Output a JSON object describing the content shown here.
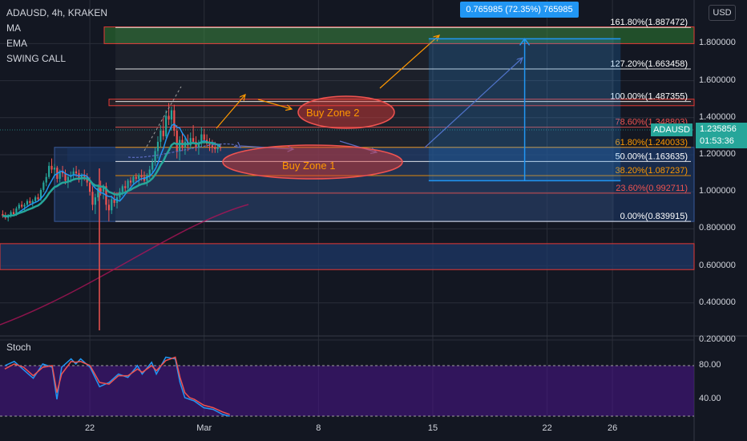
{
  "header": {
    "title": "ADAUSD, 4h, KRAKEN",
    "indicators": [
      "MA",
      "EMA",
      "SWING CALL"
    ]
  },
  "currency_button": "USD",
  "stoch_label": "Stoch",
  "price_tag": {
    "symbol": "ADAUSD",
    "price": "1.235856",
    "countdown": "01:53:36"
  },
  "measure_label": "0.765985 (72.35%) 765985",
  "annotations": {
    "zone1": "Buy Zone 1",
    "zone2": "Buy Zone 2"
  },
  "colors": {
    "background": "#131722",
    "up_candle": "#26a69a",
    "down_candle": "#ef5350",
    "ma_line": "#2196f3",
    "ema_line": "#26a69a",
    "stoch_fill": "#4a148c",
    "measure_blue": "#2196f3",
    "zone_red": "#e53935"
  },
  "chart_data": [
    {
      "type": "candlestick",
      "title": "ADAUSD, 4h, KRAKEN",
      "y_axis": {
        "ticks": [
          "1.800000",
          "1.600000",
          "1.400000",
          "1.200000",
          "1.000000",
          "0.800000",
          "0.600000",
          "0.400000",
          "0.200000"
        ],
        "tick_values": [
          1.8,
          1.6,
          1.4,
          1.2,
          1.0,
          0.8,
          0.6,
          0.4,
          0.2
        ],
        "range": [
          0.14,
          1.86
        ]
      },
      "x_axis": {
        "ticks": [
          "22",
          "Mar",
          "8",
          "15",
          "22",
          "26"
        ],
        "tick_dates": [
          "2021-02-22",
          "2021-03-01",
          "2021-03-08",
          "2021-03-15",
          "2021-03-22",
          "2021-03-26"
        ],
        "range": [
          "2021-02-16T12:00",
          "2021-03-31"
        ]
      },
      "fibonacci": [
        {
          "label": "161.80%(1.887472)",
          "value": 1.887472
        },
        {
          "label": "127.20%(1.663458)",
          "value": 1.663458
        },
        {
          "label": "100.00%(1.487355)",
          "value": 1.487355
        },
        {
          "label": "78.60%(1.348803)",
          "value": 1.348803
        },
        {
          "label": "61.80%(1.240033)",
          "value": 1.240033
        },
        {
          "label": "50.00%(1.163635)",
          "value": 1.163635
        },
        {
          "label": "38.20%(1.087237)",
          "value": 1.087237
        },
        {
          "label": "23.60%(0.992711)",
          "value": 0.992711
        },
        {
          "label": "0.00%(0.839915)",
          "value": 0.839915
        }
      ],
      "zones": [
        {
          "name": "green-top",
          "low": 1.8,
          "high": 1.89
        },
        {
          "name": "red-100",
          "low": 1.465,
          "high": 1.5
        },
        {
          "name": "blue-main",
          "low": 0.84,
          "high": 1.24
        },
        {
          "name": "blue-lower",
          "low": 0.58,
          "high": 0.72
        }
      ],
      "measure": {
        "from": 1.06,
        "to": 1.826,
        "start": "2021-03-14T18:00",
        "end": "2021-03-26T12:00"
      },
      "ohlc": [
        [
          "2021-02-16T16:00",
          0.88,
          0.9,
          0.86,
          0.87
        ],
        [
          "2021-02-16T20:00",
          0.87,
          0.89,
          0.85,
          0.86
        ],
        [
          "2021-02-17T00:00",
          0.86,
          0.88,
          0.84,
          0.87
        ],
        [
          "2021-02-17T04:00",
          0.87,
          0.9,
          0.86,
          0.89
        ],
        [
          "2021-02-17T08:00",
          0.89,
          0.91,
          0.87,
          0.88
        ],
        [
          "2021-02-17T12:00",
          0.88,
          0.92,
          0.87,
          0.91
        ],
        [
          "2021-02-17T16:00",
          0.91,
          0.94,
          0.9,
          0.93
        ],
        [
          "2021-02-17T20:00",
          0.93,
          0.95,
          0.91,
          0.92
        ],
        [
          "2021-02-18T00:00",
          0.92,
          0.94,
          0.9,
          0.93
        ],
        [
          "2021-02-18T04:00",
          0.93,
          0.96,
          0.92,
          0.95
        ],
        [
          "2021-02-18T08:00",
          0.95,
          0.97,
          0.93,
          0.94
        ],
        [
          "2021-02-18T12:00",
          0.94,
          0.96,
          0.92,
          0.95
        ],
        [
          "2021-02-18T16:00",
          0.95,
          0.98,
          0.94,
          0.97
        ],
        [
          "2021-02-18T20:00",
          0.97,
          0.99,
          0.95,
          0.96
        ],
        [
          "2021-02-19T00:00",
          0.96,
          1.02,
          0.95,
          1.01
        ],
        [
          "2021-02-19T04:00",
          1.01,
          1.06,
          1.0,
          1.05
        ],
        [
          "2021-02-19T08:00",
          1.05,
          1.1,
          1.03,
          1.08
        ],
        [
          "2021-02-19T12:00",
          1.08,
          1.16,
          1.07,
          1.14
        ],
        [
          "2021-02-19T16:00",
          1.14,
          1.18,
          1.1,
          1.12
        ],
        [
          "2021-02-19T20:00",
          1.12,
          1.15,
          1.09,
          1.13
        ],
        [
          "2021-02-20T00:00",
          1.13,
          1.14,
          1.05,
          1.07
        ],
        [
          "2021-02-20T04:00",
          1.07,
          1.12,
          1.05,
          1.11
        ],
        [
          "2021-02-20T08:00",
          1.11,
          1.14,
          1.08,
          1.1
        ],
        [
          "2021-02-20T12:00",
          1.1,
          1.12,
          1.04,
          1.06
        ],
        [
          "2021-02-20T16:00",
          1.06,
          1.09,
          1.02,
          1.08
        ],
        [
          "2021-02-20T20:00",
          1.08,
          1.11,
          1.05,
          1.09
        ],
        [
          "2021-02-21T00:00",
          1.09,
          1.13,
          1.07,
          1.11
        ],
        [
          "2021-02-21T04:00",
          1.11,
          1.14,
          1.08,
          1.1
        ],
        [
          "2021-02-21T08:00",
          1.1,
          1.12,
          1.05,
          1.07
        ],
        [
          "2021-02-21T12:00",
          1.07,
          1.1,
          1.03,
          1.09
        ],
        [
          "2021-02-21T16:00",
          1.09,
          1.12,
          1.06,
          1.08
        ],
        [
          "2021-02-21T20:00",
          1.08,
          1.1,
          1.03,
          1.05
        ],
        [
          "2021-02-22T00:00",
          1.05,
          1.08,
          0.98,
          1.0
        ],
        [
          "2021-02-22T04:00",
          1.0,
          1.03,
          0.9,
          0.93
        ],
        [
          "2021-02-22T08:00",
          0.93,
          0.99,
          0.88,
          0.97
        ],
        [
          "2021-02-22T12:00",
          0.97,
          1.04,
          0.95,
          1.02
        ],
        [
          "2021-02-22T16:00",
          1.02,
          1.06,
          0.98,
          1.0
        ],
        [
          "2021-02-22T20:00",
          1.0,
          1.04,
          0.96,
          1.03
        ],
        [
          "2021-02-23T00:00",
          1.03,
          1.05,
          0.9,
          0.93
        ],
        [
          "2021-02-23T04:00",
          0.93,
          0.96,
          0.84,
          0.9
        ],
        [
          "2021-02-23T08:00",
          0.9,
          0.98,
          0.88,
          0.96
        ],
        [
          "2021-02-23T12:00",
          0.96,
          1.0,
          0.92,
          0.94
        ],
        [
          "2021-02-23T16:00",
          0.94,
          0.99,
          0.91,
          0.97
        ],
        [
          "2021-02-23T20:00",
          0.97,
          1.02,
          0.95,
          1.0
        ],
        [
          "2021-02-24T00:00",
          1.0,
          1.04,
          0.98,
          1.03
        ],
        [
          "2021-02-24T04:00",
          1.03,
          1.06,
          1.0,
          1.02
        ],
        [
          "2021-02-24T08:00",
          1.02,
          1.07,
          1.01,
          1.06
        ],
        [
          "2021-02-24T12:00",
          1.06,
          1.08,
          1.03,
          1.05
        ],
        [
          "2021-02-24T16:00",
          1.05,
          1.09,
          1.04,
          1.08
        ],
        [
          "2021-02-24T20:00",
          1.08,
          1.1,
          1.05,
          1.07
        ],
        [
          "2021-02-25T00:00",
          1.07,
          1.1,
          1.04,
          1.09
        ],
        [
          "2021-02-25T04:00",
          1.09,
          1.12,
          1.06,
          1.08
        ],
        [
          "2021-02-25T08:00",
          1.08,
          1.11,
          1.04,
          1.06
        ],
        [
          "2021-02-25T12:00",
          1.06,
          1.1,
          1.03,
          1.09
        ],
        [
          "2021-02-25T16:00",
          1.09,
          1.14,
          1.07,
          1.12
        ],
        [
          "2021-02-25T20:00",
          1.12,
          1.18,
          1.1,
          1.16
        ],
        [
          "2021-02-26T00:00",
          1.16,
          1.24,
          1.14,
          1.22
        ],
        [
          "2021-02-26T04:00",
          1.22,
          1.3,
          1.18,
          1.27
        ],
        [
          "2021-02-26T08:00",
          1.27,
          1.36,
          1.24,
          1.33
        ],
        [
          "2021-02-26T12:00",
          1.33,
          1.4,
          1.28,
          1.3
        ],
        [
          "2021-02-26T16:00",
          1.3,
          1.44,
          1.29,
          1.41
        ],
        [
          "2021-02-26T20:00",
          1.41,
          1.48,
          1.36,
          1.39
        ],
        [
          "2021-02-27T00:00",
          1.39,
          1.46,
          1.33,
          1.44
        ],
        [
          "2021-02-27T04:00",
          1.44,
          1.47,
          1.3,
          1.33
        ],
        [
          "2021-02-27T08:00",
          1.33,
          1.36,
          1.18,
          1.22
        ],
        [
          "2021-02-27T12:00",
          1.22,
          1.3,
          1.17,
          1.28
        ],
        [
          "2021-02-27T16:00",
          1.28,
          1.32,
          1.22,
          1.24
        ],
        [
          "2021-02-27T20:00",
          1.24,
          1.3,
          1.2,
          1.27
        ],
        [
          "2021-02-28T00:00",
          1.27,
          1.31,
          1.22,
          1.25
        ],
        [
          "2021-02-28T04:00",
          1.25,
          1.32,
          1.23,
          1.29
        ],
        [
          "2021-02-28T08:00",
          1.29,
          1.36,
          1.26,
          1.27
        ],
        [
          "2021-02-28T12:00",
          1.27,
          1.3,
          1.22,
          1.24
        ],
        [
          "2021-02-28T16:00",
          1.24,
          1.28,
          1.2,
          1.26
        ],
        [
          "2021-02-28T20:00",
          1.26,
          1.35,
          1.24,
          1.31
        ],
        [
          "2021-03-01T00:00",
          1.31,
          1.34,
          1.26,
          1.28
        ],
        [
          "2021-03-01T04:00",
          1.28,
          1.31,
          1.24,
          1.26
        ],
        [
          "2021-03-01T08:00",
          1.26,
          1.29,
          1.22,
          1.25
        ],
        [
          "2021-03-01T12:00",
          1.25,
          1.28,
          1.21,
          1.24
        ],
        [
          "2021-03-01T16:00",
          1.24,
          1.27,
          1.21,
          1.23
        ],
        [
          "2021-03-01T20:00",
          1.23,
          1.26,
          1.21,
          1.24
        ],
        [
          "2021-03-02T00:00",
          1.24,
          1.26,
          1.22,
          1.236
        ]
      ]
    },
    {
      "type": "line",
      "title": "Stoch",
      "y_axis": {
        "ticks": [
          "80.00",
          "40.00"
        ],
        "tick_values": [
          80,
          40
        ],
        "range": [
          20,
          100
        ]
      },
      "band": [
        20,
        80
      ],
      "series": [
        {
          "color": "#2196f3",
          "values": [
            [
              0,
              80
            ],
            [
              4,
              85
            ],
            [
              8,
              75
            ],
            [
              12,
              65
            ],
            [
              16,
              82
            ],
            [
              20,
              78
            ],
            [
              22,
              40
            ],
            [
              24,
              78
            ],
            [
              28,
              88
            ],
            [
              30,
              82
            ],
            [
              32,
              88
            ],
            [
              36,
              78
            ],
            [
              40,
              55
            ],
            [
              44,
              60
            ],
            [
              48,
              70
            ],
            [
              52,
              66
            ],
            [
              56,
              80
            ],
            [
              58,
              70
            ],
            [
              62,
              84
            ],
            [
              64,
              70
            ],
            [
              68,
              90
            ],
            [
              72,
              88
            ],
            [
              74,
              60
            ],
            [
              76,
              42
            ],
            [
              78,
              40
            ],
            [
              80,
              38
            ],
            [
              84,
              30
            ],
            [
              88,
              28
            ],
            [
              92,
              22
            ],
            [
              95,
              20
            ]
          ]
        },
        {
          "color": "#ef5350",
          "values": [
            [
              0,
              76
            ],
            [
              4,
              82
            ],
            [
              8,
              78
            ],
            [
              12,
              68
            ],
            [
              16,
              78
            ],
            [
              20,
              80
            ],
            [
              22,
              48
            ],
            [
              24,
              70
            ],
            [
              28,
              85
            ],
            [
              30,
              84
            ],
            [
              32,
              85
            ],
            [
              36,
              80
            ],
            [
              40,
              60
            ],
            [
              44,
              58
            ],
            [
              48,
              68
            ],
            [
              52,
              68
            ],
            [
              56,
              76
            ],
            [
              58,
              72
            ],
            [
              62,
              80
            ],
            [
              64,
              74
            ],
            [
              68,
              86
            ],
            [
              72,
              90
            ],
            [
              74,
              66
            ],
            [
              76,
              48
            ],
            [
              78,
              42
            ],
            [
              80,
              40
            ],
            [
              84,
              33
            ],
            [
              88,
              30
            ],
            [
              92,
              25
            ],
            [
              95,
              22
            ]
          ]
        }
      ]
    }
  ]
}
